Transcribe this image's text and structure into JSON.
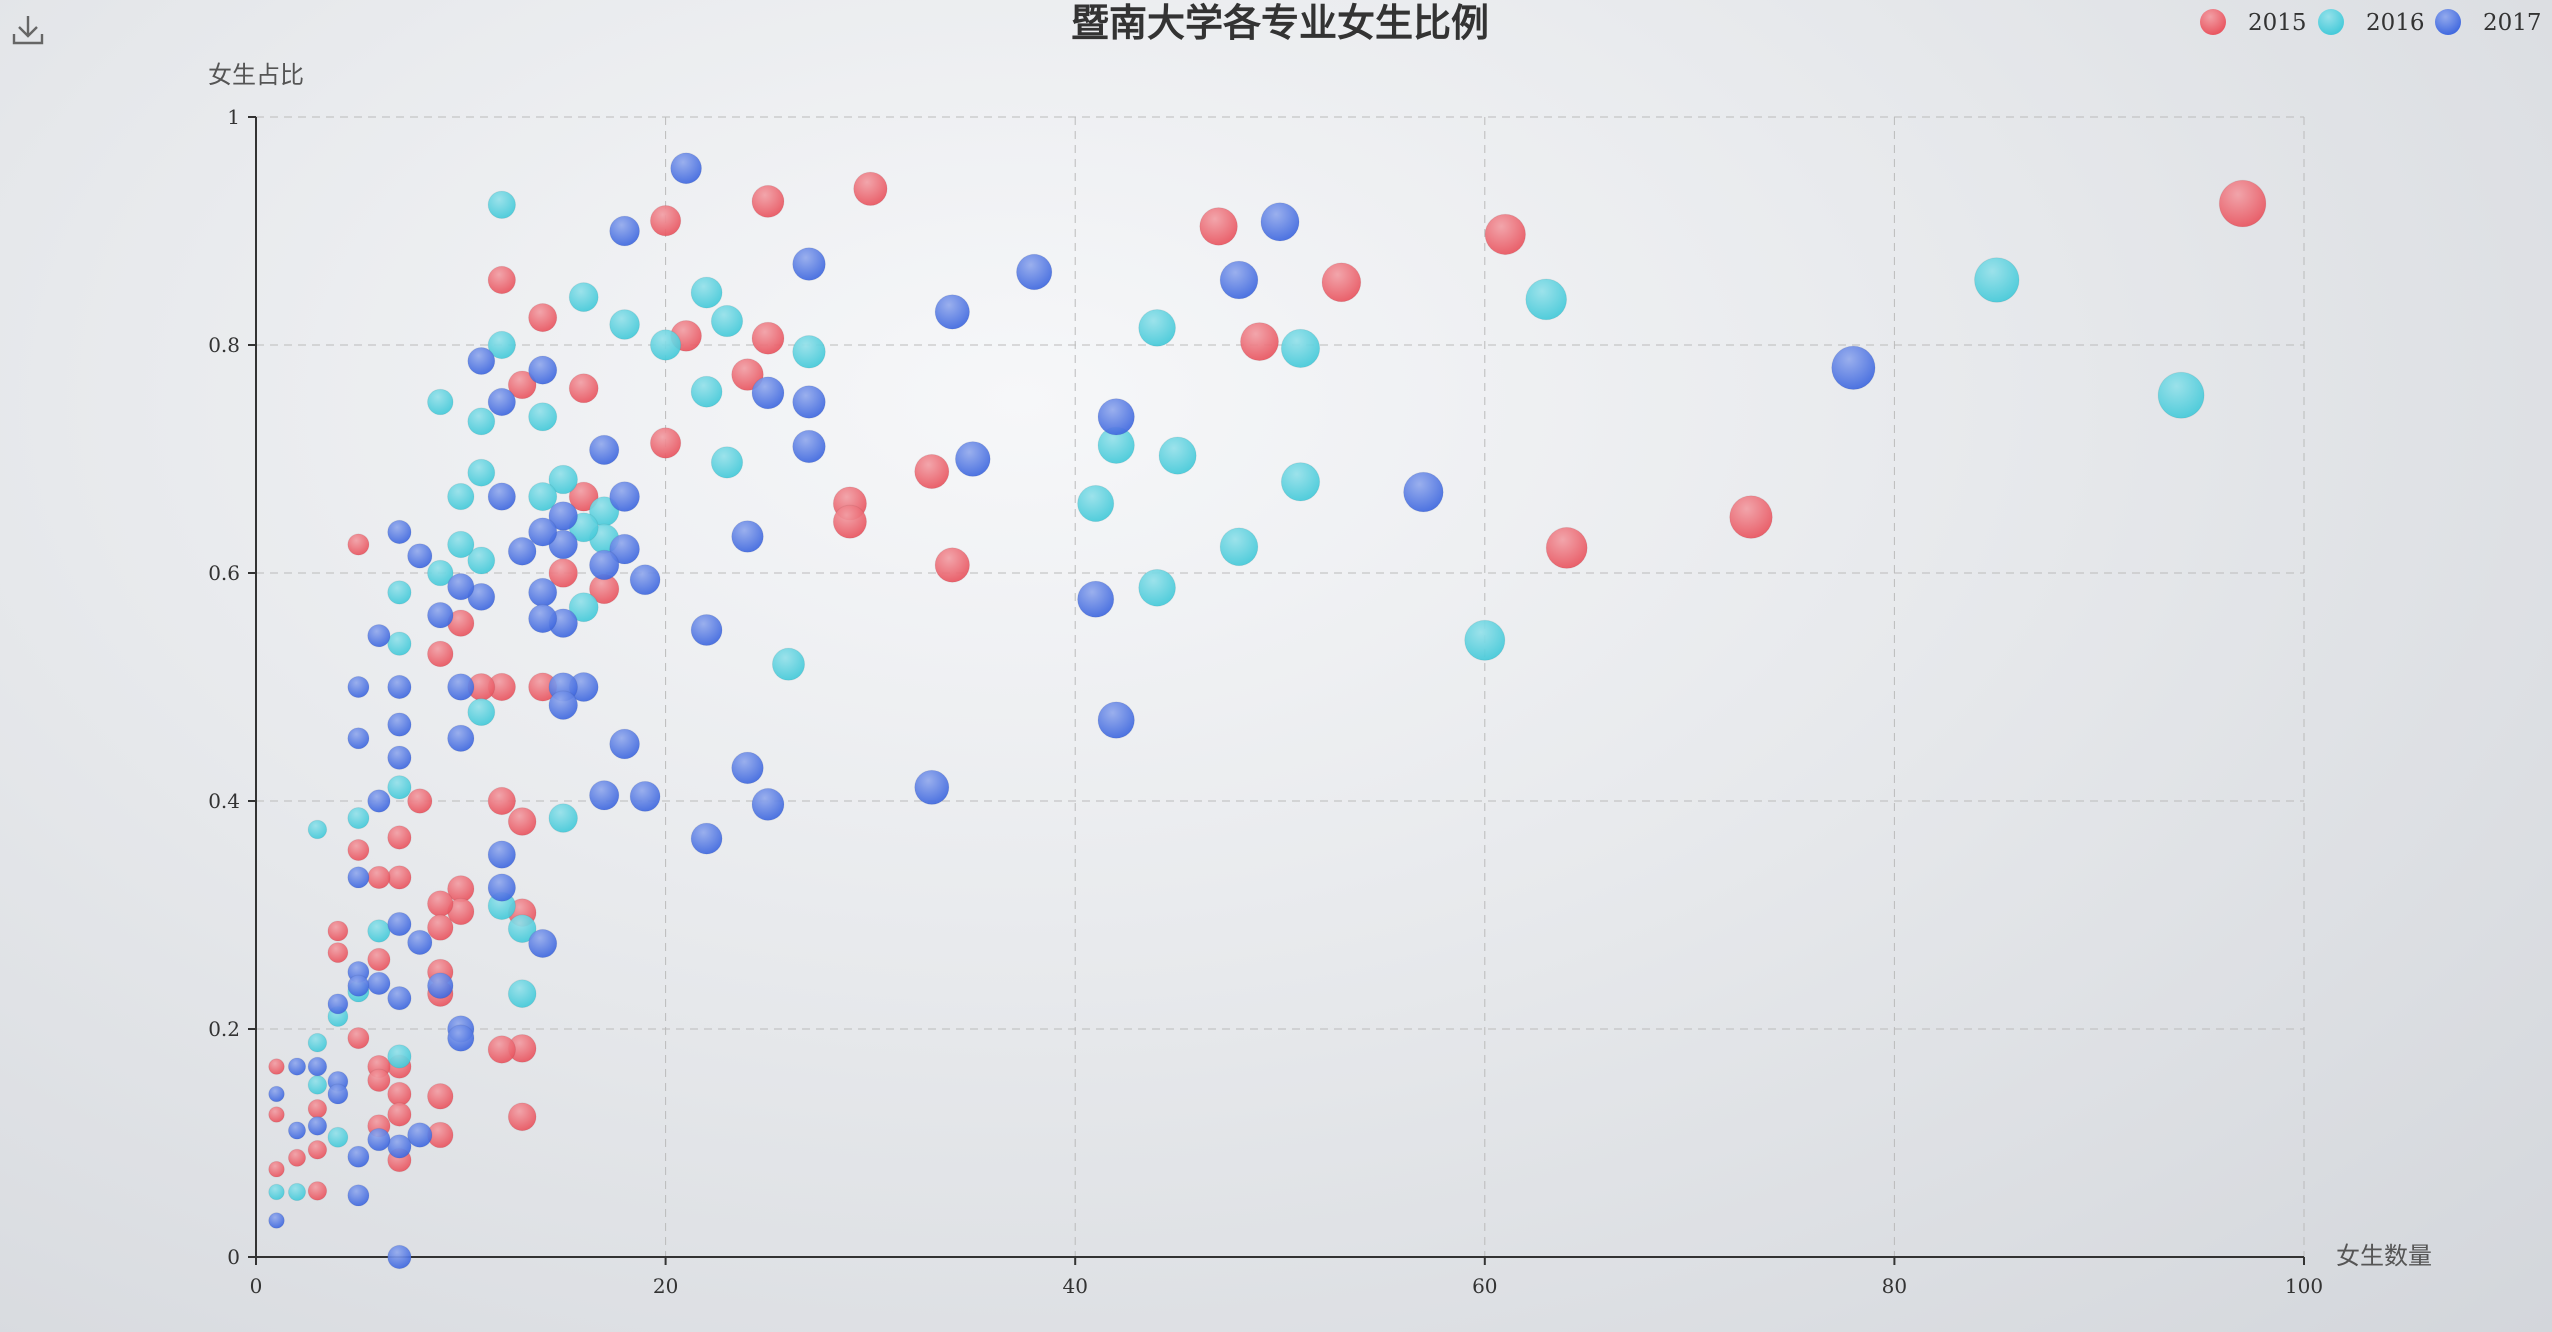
{
  "toolbox": {
    "icon": "download-icon"
  },
  "chart_data": {
    "type": "scatter",
    "title": "暨南大学各专业女生比例",
    "xlabel": "女生数量",
    "ylabel": "女生占比",
    "xlim": [
      0,
      100
    ],
    "ylim": [
      0,
      1
    ],
    "x_ticks": [
      "0",
      "20",
      "40",
      "60",
      "80",
      "100"
    ],
    "y_ticks": [
      "0",
      "0.2",
      "0.4",
      "0.6",
      "0.8",
      "1"
    ],
    "grid": true,
    "legend_position": "top-right",
    "series": [
      {
        "name": "2015",
        "color": "#e8505b",
        "points": [
          [
            97,
            0.924
          ],
          [
            73,
            0.649
          ],
          [
            64,
            0.622
          ],
          [
            61,
            0.897
          ],
          [
            53,
            0.855
          ],
          [
            49,
            0.803
          ],
          [
            47,
            0.904
          ],
          [
            34,
            0.607
          ],
          [
            33,
            0.689
          ],
          [
            30,
            0.937
          ],
          [
            29,
            0.661
          ],
          [
            29,
            0.645
          ],
          [
            25,
            0.926
          ],
          [
            25,
            0.806
          ],
          [
            24,
            0.774
          ],
          [
            21,
            0.808
          ],
          [
            20,
            0.909
          ],
          [
            20,
            0.714
          ],
          [
            17,
            0.586
          ],
          [
            16,
            0.762
          ],
          [
            16,
            0.667
          ],
          [
            15,
            0.6
          ],
          [
            14,
            0.824
          ],
          [
            14,
            0.5
          ],
          [
            13,
            0.765
          ],
          [
            13,
            0.382
          ],
          [
            13,
            0.302
          ],
          [
            13,
            0.183
          ],
          [
            13,
            0.123
          ],
          [
            12,
            0.857
          ],
          [
            12,
            0.5
          ],
          [
            12,
            0.4
          ],
          [
            12,
            0.182
          ],
          [
            11,
            0.5
          ],
          [
            10,
            0.556
          ],
          [
            10,
            0.323
          ],
          [
            10,
            0.303
          ],
          [
            9,
            0.529
          ],
          [
            9,
            0.31
          ],
          [
            9,
            0.289
          ],
          [
            9,
            0.25
          ],
          [
            9,
            0.231
          ],
          [
            9,
            0.141
          ],
          [
            9,
            0.107
          ],
          [
            8,
            0.4
          ],
          [
            7,
            0.368
          ],
          [
            7,
            0.333
          ],
          [
            7,
            0.167
          ],
          [
            7,
            0.143
          ],
          [
            7,
            0.125
          ],
          [
            7,
            0.085
          ],
          [
            6,
            0.333
          ],
          [
            6,
            0.261
          ],
          [
            6,
            0.167
          ],
          [
            6,
            0.155
          ],
          [
            6,
            0.115
          ],
          [
            5,
            0.625
          ],
          [
            5,
            0.357
          ],
          [
            5,
            0.192
          ],
          [
            4,
            0.286
          ],
          [
            4,
            0.267
          ],
          [
            3,
            0.13
          ],
          [
            3,
            0.094
          ],
          [
            3,
            0.058
          ],
          [
            2,
            0.087
          ],
          [
            1,
            0.167
          ],
          [
            1,
            0.125
          ],
          [
            1,
            0.077
          ]
        ]
      },
      {
        "name": "2016",
        "color": "#3fc8d8",
        "points": [
          [
            94,
            0.756
          ],
          [
            85,
            0.857
          ],
          [
            63,
            0.84
          ],
          [
            60,
            0.541
          ],
          [
            51,
            0.797
          ],
          [
            51,
            0.68
          ],
          [
            48,
            0.623
          ],
          [
            45,
            0.703
          ],
          [
            44,
            0.815
          ],
          [
            44,
            0.587
          ],
          [
            42,
            0.712
          ],
          [
            41,
            0.661
          ],
          [
            27,
            0.794
          ],
          [
            26,
            0.52
          ],
          [
            23,
            0.821
          ],
          [
            23,
            0.697
          ],
          [
            22,
            0.846
          ],
          [
            22,
            0.759
          ],
          [
            20,
            0.8
          ],
          [
            18,
            0.818
          ],
          [
            17,
            0.654
          ],
          [
            17,
            0.63
          ],
          [
            16,
            0.842
          ],
          [
            16,
            0.64
          ],
          [
            16,
            0.57
          ],
          [
            15,
            0.682
          ],
          [
            15,
            0.385
          ],
          [
            14,
            0.737
          ],
          [
            14,
            0.667
          ],
          [
            13,
            0.288
          ],
          [
            13,
            0.231
          ],
          [
            12,
            0.923
          ],
          [
            12,
            0.8
          ],
          [
            12,
            0.308
          ],
          [
            11,
            0.733
          ],
          [
            11,
            0.688
          ],
          [
            11,
            0.611
          ],
          [
            11,
            0.478
          ],
          [
            10,
            0.667
          ],
          [
            10,
            0.625
          ],
          [
            9,
            0.75
          ],
          [
            9,
            0.6
          ],
          [
            7,
            0.583
          ],
          [
            7,
            0.538
          ],
          [
            7,
            0.412
          ],
          [
            7,
            0.176
          ],
          [
            6,
            0.286
          ],
          [
            5,
            0.385
          ],
          [
            5,
            0.233
          ],
          [
            4,
            0.211
          ],
          [
            4,
            0.105
          ],
          [
            3,
            0.375
          ],
          [
            3,
            0.188
          ],
          [
            3,
            0.151
          ],
          [
            2,
            0.057
          ],
          [
            1,
            0.057
          ]
        ]
      },
      {
        "name": "2017",
        "color": "#3a64de",
        "points": [
          [
            78,
            0.78
          ],
          [
            57,
            0.671
          ],
          [
            50,
            0.908
          ],
          [
            48,
            0.857
          ],
          [
            42,
            0.737
          ],
          [
            42,
            0.471
          ],
          [
            41,
            0.577
          ],
          [
            38,
            0.864
          ],
          [
            35,
            0.7
          ],
          [
            34,
            0.829
          ],
          [
            33,
            0.412
          ],
          [
            27,
            0.871
          ],
          [
            27,
            0.75
          ],
          [
            27,
            0.711
          ],
          [
            25,
            0.758
          ],
          [
            25,
            0.397
          ],
          [
            24,
            0.632
          ],
          [
            24,
            0.429
          ],
          [
            22,
            0.55
          ],
          [
            22,
            0.367
          ],
          [
            21,
            0.955
          ],
          [
            19,
            0.594
          ],
          [
            19,
            0.404
          ],
          [
            18,
            0.9
          ],
          [
            18,
            0.667
          ],
          [
            18,
            0.621
          ],
          [
            18,
            0.45
          ],
          [
            17,
            0.708
          ],
          [
            17,
            0.607
          ],
          [
            17,
            0.405
          ],
          [
            16,
            0.5
          ],
          [
            15,
            0.65
          ],
          [
            15,
            0.625
          ],
          [
            15,
            0.556
          ],
          [
            15,
            0.5
          ],
          [
            15,
            0.484
          ],
          [
            14,
            0.778
          ],
          [
            14,
            0.636
          ],
          [
            14,
            0.583
          ],
          [
            14,
            0.56
          ],
          [
            14,
            0.275
          ],
          [
            13,
            0.619
          ],
          [
            12,
            0.75
          ],
          [
            12,
            0.667
          ],
          [
            12,
            0.353
          ],
          [
            12,
            0.324
          ],
          [
            11,
            0.786
          ],
          [
            11,
            0.579
          ],
          [
            10,
            0.588
          ],
          [
            10,
            0.5
          ],
          [
            10,
            0.455
          ],
          [
            10,
            0.2
          ],
          [
            10,
            0.192
          ],
          [
            9,
            0.563
          ],
          [
            9,
            0.238
          ],
          [
            8,
            0.615
          ],
          [
            8,
            0.276
          ],
          [
            8,
            0.107
          ],
          [
            7,
            0.636
          ],
          [
            7,
            0.5
          ],
          [
            7,
            0.467
          ],
          [
            7,
            0.438
          ],
          [
            7,
            0.292
          ],
          [
            7,
            0.227
          ],
          [
            7,
            0.097
          ],
          [
            7,
            0
          ],
          [
            6,
            0.545
          ],
          [
            6,
            0.4
          ],
          [
            6,
            0.24
          ],
          [
            6,
            0.103
          ],
          [
            5,
            0.5
          ],
          [
            5,
            0.455
          ],
          [
            5,
            0.333
          ],
          [
            5,
            0.25
          ],
          [
            5,
            0.238
          ],
          [
            5,
            0.088
          ],
          [
            5,
            0.054
          ],
          [
            4,
            0.222
          ],
          [
            4,
            0.154
          ],
          [
            4,
            0.143
          ],
          [
            3,
            0.167
          ],
          [
            3,
            0.115
          ],
          [
            2,
            0.167
          ],
          [
            2,
            0.111
          ],
          [
            1,
            0.143
          ],
          [
            1,
            0.032
          ]
        ]
      }
    ]
  }
}
